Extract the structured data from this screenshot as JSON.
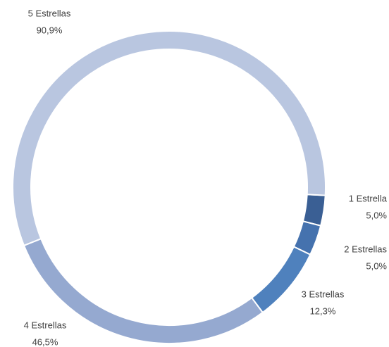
{
  "chart_data": {
    "type": "donut",
    "categories": [
      "1 Estrella",
      "2 Estrellas",
      "3 Estrellas",
      "4 Estrellas",
      "5 Estrellas"
    ],
    "values": [
      5.0,
      5.0,
      12.3,
      46.5,
      90.9
    ],
    "value_labels": [
      "5,0%",
      "5,0%",
      "12,3%",
      "46,5%",
      "90,9%"
    ],
    "colors": [
      "#3a5f94",
      "#4572ae",
      "#4f81bd",
      "#95a9d0",
      "#b9c6e0"
    ]
  }
}
